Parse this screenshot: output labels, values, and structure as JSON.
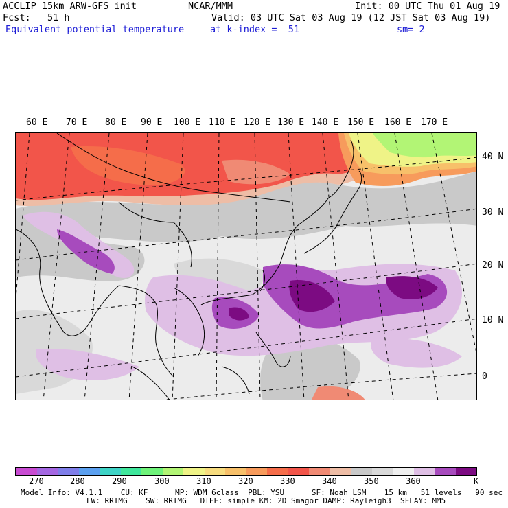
{
  "header": {
    "model": "ACCLIP 15km ARW-GFS init",
    "center": "NCAR/MMM",
    "init": "Init: 00 UTC Thu 01 Aug 19",
    "fcst": "Fcst:   51 h",
    "valid": "Valid: 03 UTC Sat 03 Aug 19 (12 JST Sat 03 Aug 19)",
    "field": "Equivalent potential temperature",
    "level": "at k-index =  51",
    "smooth": "sm= 2"
  },
  "map": {
    "lon_labels": [
      "60 E",
      "70 E",
      "80 E",
      "90 E",
      "100 E",
      "110 E",
      "120 E",
      "130 E",
      "140 E",
      "150 E",
      "160 E",
      "170 E"
    ],
    "lat_labels": [
      "40 N",
      "30 N",
      "20 N",
      "10 N",
      "0"
    ]
  },
  "colorbar": {
    "colors": [
      "#c84bd2",
      "#a467e2",
      "#7f7ee9",
      "#5ba0f0",
      "#3ed3c6",
      "#3fe79c",
      "#6ff37a",
      "#b2f575",
      "#eff387",
      "#f7dc7f",
      "#f7c06a",
      "#f79b5c",
      "#f56d4a",
      "#f2554a",
      "#f08a74",
      "#eebda6",
      "#c9c9c9",
      "#d9d9d9",
      "#efefef",
      "#dfbfe5",
      "#a74bbd",
      "#7c0b82"
    ],
    "tick_labels": [
      "270",
      "280",
      "290",
      "300",
      "310",
      "320",
      "330",
      "340",
      "350",
      "360"
    ],
    "unit": "K"
  },
  "model_info": {
    "line1": "Model Info: V4.1.1    CU: KF      MP: WDM 6class  PBL: YSU      SF: Noah LSM    15 km   51 levels   90 sec",
    "line2": "LW: RRTMG    SW: RRTMG   DIFF: simple KM: 2D Smagor DAMP: Rayleigh3  SFLAY: MM5"
  }
}
